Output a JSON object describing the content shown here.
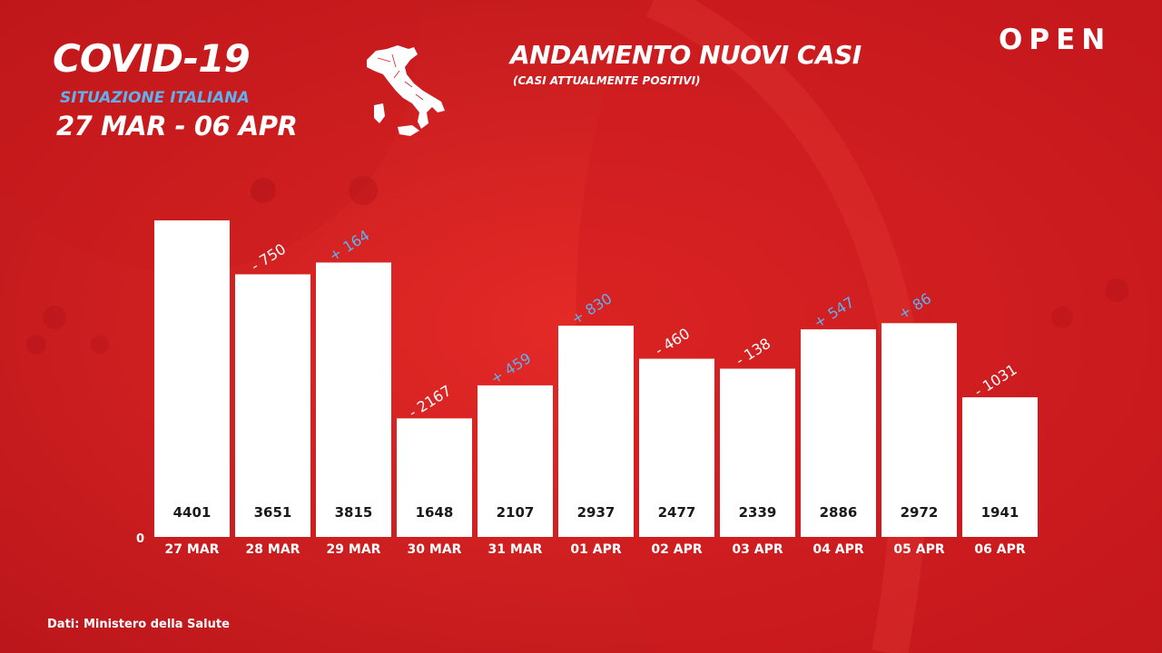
{
  "header": {
    "title": "COVID-19",
    "subtitle": "SITUAZIONE ITALIANA",
    "date_range": "27 MAR - 06 APR",
    "brand": "OPEN"
  },
  "chart_header": {
    "title": "ANDAMENTO NUOVI CASI",
    "subtitle": "(CASI ATTUALMENTE POSITIVI)"
  },
  "footer": {
    "source": "Dati: Ministero della Salute"
  },
  "colors": {
    "background": "#d8201f",
    "bar": "#ffffff",
    "positive_delta": "#5fb2f0",
    "negative_delta": "#ffffff",
    "value_text": "#1a1a1a"
  },
  "icons": {
    "map": "italy-map-icon"
  },
  "chart_data": {
    "type": "bar",
    "title": "ANDAMENTO NUOVI CASI",
    "subtitle": "(CASI ATTUALMENTE POSITIVI)",
    "categories": [
      "27 MAR",
      "28 MAR",
      "29 MAR",
      "30 MAR",
      "31 MAR",
      "01 APR",
      "02 APR",
      "03 APR",
      "04 APR",
      "05 APR",
      "06 APR"
    ],
    "values": [
      4401,
      3651,
      3815,
      1648,
      2107,
      2937,
      2477,
      2339,
      2886,
      2972,
      1941
    ],
    "value_labels": [
      "4401",
      "3651",
      "3815",
      "1648",
      "2107",
      "2937",
      "2477",
      "2339",
      "2886",
      "2972",
      "1941"
    ],
    "delta_labels": [
      null,
      "- 750",
      "+ 164",
      "- 2167",
      "+ 459",
      "+ 830",
      "- 460",
      "- 138",
      "+ 547",
      "+ 86",
      "- 1031"
    ],
    "delta_signs": [
      null,
      "negative",
      "positive",
      "negative",
      "positive",
      "positive",
      "negative",
      "negative",
      "positive",
      "positive",
      "negative"
    ],
    "ylim": [
      0,
      4401
    ],
    "y_tick_label": "0",
    "grid": false,
    "legend": "none",
    "xlabel": "",
    "ylabel": ""
  }
}
